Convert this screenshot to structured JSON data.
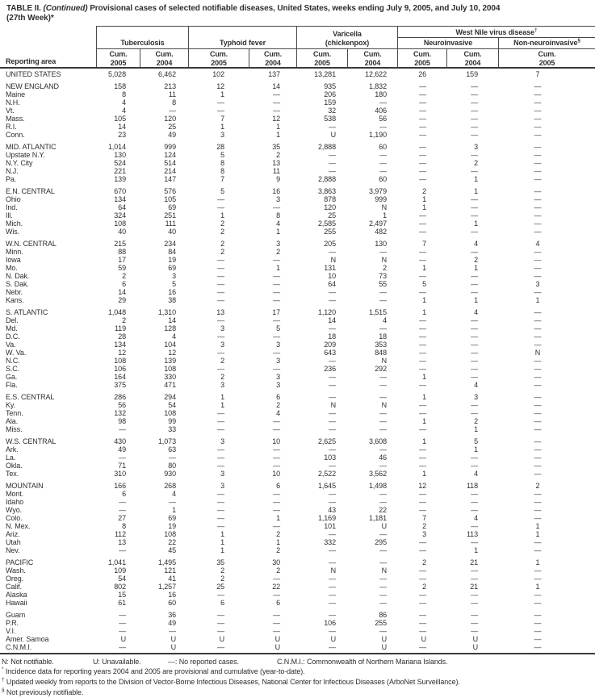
{
  "title": {
    "part1": "TABLE II.",
    "part2": "(Continued)",
    "part3": "Provisional cases of selected notifiable diseases, United States, weeks ending July 9, 2005, and July 10, 2004",
    "line2": "(27th Week)*"
  },
  "table": {
    "reporting_area_label": "Reporting area",
    "groups": [
      {
        "label": "Tuberculosis"
      },
      {
        "label": "Typhoid fever"
      },
      {
        "line1": "Varicella",
        "line2": "(chickenpox)"
      },
      {
        "label_main": "West Nile virus disease",
        "label_sup": "†",
        "subgroups": [
          {
            "label": "Neuroinvasive"
          },
          {
            "label_main": "Non-neuroinvasive",
            "label_sup": "§"
          }
        ]
      }
    ],
    "year_headers": [
      {
        "l1": "Cum.",
        "l2": "2005"
      },
      {
        "l1": "Cum.",
        "l2": "2004"
      },
      {
        "l1": "Cum.",
        "l2": "2005"
      },
      {
        "l1": "Cum.",
        "l2": "2004"
      },
      {
        "l1": "Cum.",
        "l2": "2005"
      },
      {
        "l1": "Cum.",
        "l2": "2004"
      },
      {
        "l1": "Cum.",
        "l2": "2005"
      },
      {
        "l1": "Cum.",
        "l2": "2004"
      },
      {
        "l1": "Cum.",
        "l2": "2005"
      }
    ],
    "rows": [
      {
        "a": "UNITED STATES",
        "v": [
          "5,028",
          "6,462",
          "102",
          "137",
          "13,281",
          "12,622",
          "26",
          "159",
          "7"
        ]
      },
      {
        "a": "NEW ENGLAND",
        "g": 1,
        "v": [
          "158",
          "213",
          "12",
          "14",
          "935",
          "1,832",
          "—",
          "—",
          "—"
        ]
      },
      {
        "a": "Maine",
        "v": [
          "8",
          "11",
          "1",
          "—",
          "206",
          "180",
          "—",
          "—",
          "—"
        ]
      },
      {
        "a": "N.H.",
        "v": [
          "4",
          "8",
          "—",
          "—",
          "159",
          "—",
          "—",
          "—",
          "—"
        ]
      },
      {
        "a": "Vt.",
        "v": [
          "4",
          "—",
          "—",
          "—",
          "32",
          "406",
          "—",
          "—",
          "—"
        ]
      },
      {
        "a": "Mass.",
        "v": [
          "105",
          "120",
          "7",
          "12",
          "538",
          "56",
          "—",
          "—",
          "—"
        ]
      },
      {
        "a": "R.I.",
        "v": [
          "14",
          "25",
          "1",
          "1",
          "—",
          "—",
          "—",
          "—",
          "—"
        ]
      },
      {
        "a": "Conn.",
        "v": [
          "23",
          "49",
          "3",
          "1",
          "U",
          "1,190",
          "—",
          "—",
          "—"
        ]
      },
      {
        "a": "MID. ATLANTIC",
        "g": 1,
        "v": [
          "1,014",
          "999",
          "28",
          "35",
          "2,888",
          "60",
          "—",
          "3",
          "—"
        ]
      },
      {
        "a": "Upstate N.Y.",
        "v": [
          "130",
          "124",
          "5",
          "2",
          "—",
          "—",
          "—",
          "—",
          "—"
        ]
      },
      {
        "a": "N.Y. City",
        "v": [
          "524",
          "514",
          "8",
          "13",
          "—",
          "—",
          "—",
          "2",
          "—"
        ]
      },
      {
        "a": "N.J.",
        "v": [
          "221",
          "214",
          "8",
          "11",
          "—",
          "—",
          "—",
          "—",
          "—"
        ]
      },
      {
        "a": "Pa.",
        "v": [
          "139",
          "147",
          "7",
          "9",
          "2,888",
          "60",
          "—",
          "1",
          "—"
        ]
      },
      {
        "a": "E.N. CENTRAL",
        "g": 1,
        "v": [
          "670",
          "576",
          "5",
          "16",
          "3,863",
          "3,979",
          "2",
          "1",
          "—"
        ]
      },
      {
        "a": "Ohio",
        "v": [
          "134",
          "105",
          "—",
          "3",
          "878",
          "999",
          "1",
          "—",
          "—"
        ]
      },
      {
        "a": "Ind.",
        "v": [
          "64",
          "69",
          "—",
          "—",
          "120",
          "N",
          "1",
          "—",
          "—"
        ]
      },
      {
        "a": "Ill.",
        "v": [
          "324",
          "251",
          "1",
          "8",
          "25",
          "1",
          "—",
          "—",
          "—"
        ]
      },
      {
        "a": "Mich.",
        "v": [
          "108",
          "111",
          "2",
          "4",
          "2,585",
          "2,497",
          "—",
          "1",
          "—"
        ]
      },
      {
        "a": "Wis.",
        "v": [
          "40",
          "40",
          "2",
          "1",
          "255",
          "482",
          "—",
          "—",
          "—"
        ]
      },
      {
        "a": "W.N. CENTRAL",
        "g": 1,
        "v": [
          "215",
          "234",
          "2",
          "3",
          "205",
          "130",
          "7",
          "4",
          "4"
        ]
      },
      {
        "a": "Minn.",
        "v": [
          "88",
          "84",
          "2",
          "2",
          "—",
          "—",
          "—",
          "—",
          "—"
        ]
      },
      {
        "a": "Iowa",
        "v": [
          "17",
          "19",
          "—",
          "—",
          "N",
          "N",
          "—",
          "2",
          "—"
        ]
      },
      {
        "a": "Mo.",
        "v": [
          "59",
          "69",
          "—",
          "1",
          "131",
          "2",
          "1",
          "1",
          "—"
        ]
      },
      {
        "a": "N. Dak.",
        "v": [
          "2",
          "3",
          "—",
          "—",
          "10",
          "73",
          "—",
          "—",
          "—"
        ]
      },
      {
        "a": "S. Dak.",
        "v": [
          "6",
          "5",
          "—",
          "—",
          "64",
          "55",
          "5",
          "—",
          "3"
        ]
      },
      {
        "a": "Nebr.",
        "v": [
          "14",
          "16",
          "—",
          "—",
          "—",
          "—",
          "—",
          "—",
          "—"
        ]
      },
      {
        "a": "Kans.",
        "v": [
          "29",
          "38",
          "—",
          "—",
          "—",
          "—",
          "1",
          "1",
          "1"
        ]
      },
      {
        "a": "S. ATLANTIC",
        "g": 1,
        "v": [
          "1,048",
          "1,310",
          "13",
          "17",
          "1,120",
          "1,515",
          "1",
          "4",
          "—"
        ]
      },
      {
        "a": "Del.",
        "v": [
          "2",
          "14",
          "—",
          "—",
          "14",
          "4",
          "—",
          "—",
          "—"
        ]
      },
      {
        "a": "Md.",
        "v": [
          "119",
          "128",
          "3",
          "5",
          "—",
          "—",
          "—",
          "—",
          "—"
        ]
      },
      {
        "a": "D.C.",
        "v": [
          "28",
          "4",
          "—",
          "—",
          "18",
          "18",
          "—",
          "—",
          "—"
        ]
      },
      {
        "a": "Va.",
        "v": [
          "134",
          "104",
          "3",
          "3",
          "209",
          "353",
          "—",
          "—",
          "—"
        ]
      },
      {
        "a": "W. Va.",
        "v": [
          "12",
          "12",
          "—",
          "—",
          "643",
          "848",
          "—",
          "—",
          "N"
        ]
      },
      {
        "a": "N.C.",
        "v": [
          "108",
          "139",
          "2",
          "3",
          "—",
          "N",
          "—",
          "—",
          "—"
        ]
      },
      {
        "a": "S.C.",
        "v": [
          "106",
          "108",
          "—",
          "—",
          "236",
          "292",
          "—",
          "—",
          "—"
        ]
      },
      {
        "a": "Ga.",
        "v": [
          "164",
          "330",
          "2",
          "3",
          "—",
          "—",
          "1",
          "—",
          "—"
        ]
      },
      {
        "a": "Fla.",
        "v": [
          "375",
          "471",
          "3",
          "3",
          "—",
          "—",
          "—",
          "4",
          "—"
        ]
      },
      {
        "a": "E.S. CENTRAL",
        "g": 1,
        "v": [
          "286",
          "294",
          "1",
          "6",
          "—",
          "—",
          "1",
          "3",
          "—"
        ]
      },
      {
        "a": "Ky.",
        "v": [
          "56",
          "54",
          "1",
          "2",
          "N",
          "N",
          "—",
          "—",
          "—"
        ]
      },
      {
        "a": "Tenn.",
        "v": [
          "132",
          "108",
          "—",
          "4",
          "—",
          "—",
          "—",
          "—",
          "—"
        ]
      },
      {
        "a": "Ala.",
        "v": [
          "98",
          "99",
          "—",
          "—",
          "—",
          "—",
          "1",
          "2",
          "—"
        ]
      },
      {
        "a": "Miss.",
        "v": [
          "—",
          "33",
          "—",
          "—",
          "—",
          "—",
          "—",
          "1",
          "—"
        ]
      },
      {
        "a": "W.S. CENTRAL",
        "g": 1,
        "v": [
          "430",
          "1,073",
          "3",
          "10",
          "2,625",
          "3,608",
          "1",
          "5",
          "—"
        ]
      },
      {
        "a": "Ark.",
        "v": [
          "49",
          "63",
          "—",
          "—",
          "—",
          "—",
          "—",
          "1",
          "—"
        ]
      },
      {
        "a": "La.",
        "v": [
          "—",
          "—",
          "—",
          "—",
          "103",
          "46",
          "—",
          "—",
          "—"
        ]
      },
      {
        "a": "Okla.",
        "v": [
          "71",
          "80",
          "—",
          "—",
          "—",
          "—",
          "—",
          "—",
          "—"
        ]
      },
      {
        "a": "Tex.",
        "v": [
          "310",
          "930",
          "3",
          "10",
          "2,522",
          "3,562",
          "1",
          "4",
          "—"
        ]
      },
      {
        "a": "MOUNTAIN",
        "g": 1,
        "v": [
          "166",
          "268",
          "3",
          "6",
          "1,645",
          "1,498",
          "12",
          "118",
          "2"
        ]
      },
      {
        "a": "Mont.",
        "v": [
          "6",
          "4",
          "—",
          "—",
          "—",
          "—",
          "—",
          "—",
          "—"
        ]
      },
      {
        "a": "Idaho",
        "v": [
          "—",
          "—",
          "—",
          "—",
          "—",
          "—",
          "—",
          "—",
          "—"
        ]
      },
      {
        "a": "Wyo.",
        "v": [
          "—",
          "1",
          "—",
          "—",
          "43",
          "22",
          "—",
          "—",
          "—"
        ]
      },
      {
        "a": "Colo.",
        "v": [
          "27",
          "69",
          "—",
          "1",
          "1,169",
          "1,181",
          "7",
          "4",
          "—"
        ]
      },
      {
        "a": "N. Mex.",
        "v": [
          "8",
          "19",
          "—",
          "—",
          "101",
          "U",
          "2",
          "—",
          "1"
        ]
      },
      {
        "a": "Ariz.",
        "v": [
          "112",
          "108",
          "1",
          "2",
          "—",
          "—",
          "3",
          "113",
          "1"
        ]
      },
      {
        "a": "Utah",
        "v": [
          "13",
          "22",
          "1",
          "1",
          "332",
          "295",
          "—",
          "—",
          "—"
        ]
      },
      {
        "a": "Nev.",
        "v": [
          "—",
          "45",
          "1",
          "2",
          "—",
          "—",
          "—",
          "1",
          "—"
        ]
      },
      {
        "a": "PACIFIC",
        "g": 1,
        "v": [
          "1,041",
          "1,495",
          "35",
          "30",
          "—",
          "—",
          "2",
          "21",
          "1"
        ]
      },
      {
        "a": "Wash.",
        "v": [
          "109",
          "121",
          "2",
          "2",
          "N",
          "N",
          "—",
          "—",
          "—"
        ]
      },
      {
        "a": "Oreg.",
        "v": [
          "54",
          "41",
          "2",
          "—",
          "—",
          "—",
          "—",
          "—",
          "—"
        ]
      },
      {
        "a": "Calif.",
        "v": [
          "802",
          "1,257",
          "25",
          "22",
          "—",
          "—",
          "2",
          "21",
          "1"
        ]
      },
      {
        "a": "Alaska",
        "v": [
          "15",
          "16",
          "—",
          "—",
          "—",
          "—",
          "—",
          "—",
          "—"
        ]
      },
      {
        "a": "Hawaii",
        "v": [
          "61",
          "60",
          "6",
          "6",
          "—",
          "—",
          "—",
          "—",
          "—"
        ]
      },
      {
        "a": "Guam",
        "g": 1,
        "v": [
          "—",
          "36",
          "—",
          "—",
          "—",
          "86",
          "—",
          "—",
          "—"
        ]
      },
      {
        "a": "P.R.",
        "v": [
          "—",
          "49",
          "—",
          "—",
          "106",
          "255",
          "—",
          "—",
          "—"
        ]
      },
      {
        "a": "V.I.",
        "v": [
          "—",
          "—",
          "—",
          "—",
          "—",
          "—",
          "—",
          "—",
          "—"
        ]
      },
      {
        "a": "Amer. Samoa",
        "v": [
          "U",
          "U",
          "U",
          "U",
          "U",
          "U",
          "U",
          "U",
          "—"
        ]
      },
      {
        "a": "C.N.M.I.",
        "v": [
          "—",
          "U",
          "—",
          "U",
          "—",
          "U",
          "—",
          "U",
          "—"
        ]
      }
    ]
  },
  "footnotes": {
    "legend": [
      "N: Not notifiable.",
      "U: Unavailable.",
      "—: No reported cases.",
      "C.N.M.I.: Commonwealth of Northern Mariana Islands."
    ],
    "notes": [
      {
        "symbol": "*",
        "text": "Incidence data for reporting years 2004 and 2005 are provisional and cumulative (year-to-date)."
      },
      {
        "symbol": "†",
        "text": "Updated weekly from reports to the Division of Vector-Borne Infectious Diseases, National Center for Infectious Diseases (ArboNet Surveillance)."
      },
      {
        "symbol": "§",
        "text": "Not previously notifiable."
      }
    ]
  }
}
